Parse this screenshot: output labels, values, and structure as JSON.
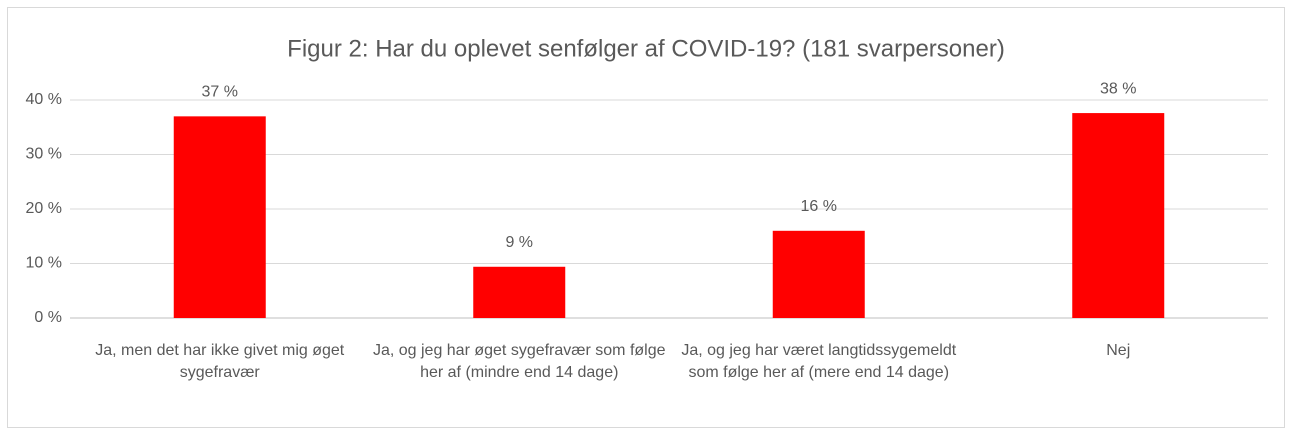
{
  "chart_data": {
    "type": "bar",
    "title": "Figur 2: Har du oplevet senfølger af COVID-19? (181 svarpersoner)",
    "categories": [
      "Ja, men det har ikke givet mig øget sygefravær",
      "Ja, og jeg har øget sygefravær som følge her af (mindre end 14 dage)",
      "Ja, og jeg har været langtidssygemeldt som følge her af (mere end 14 dage)",
      "Nej"
    ],
    "values": [
      37,
      9.4,
      16,
      37.6
    ],
    "value_labels": [
      "37 %",
      "9 %",
      "16 %",
      "38 %"
    ],
    "color": "#ff0000",
    "ylim": [
      0,
      40
    ],
    "yticks": [
      {
        "value": 0,
        "label": "0 %"
      },
      {
        "value": 10,
        "label": "10 %"
      },
      {
        "value": 20,
        "label": "20 %"
      },
      {
        "value": 30,
        "label": "30 %"
      },
      {
        "value": 40,
        "label": "40 %"
      }
    ],
    "grid": true
  }
}
